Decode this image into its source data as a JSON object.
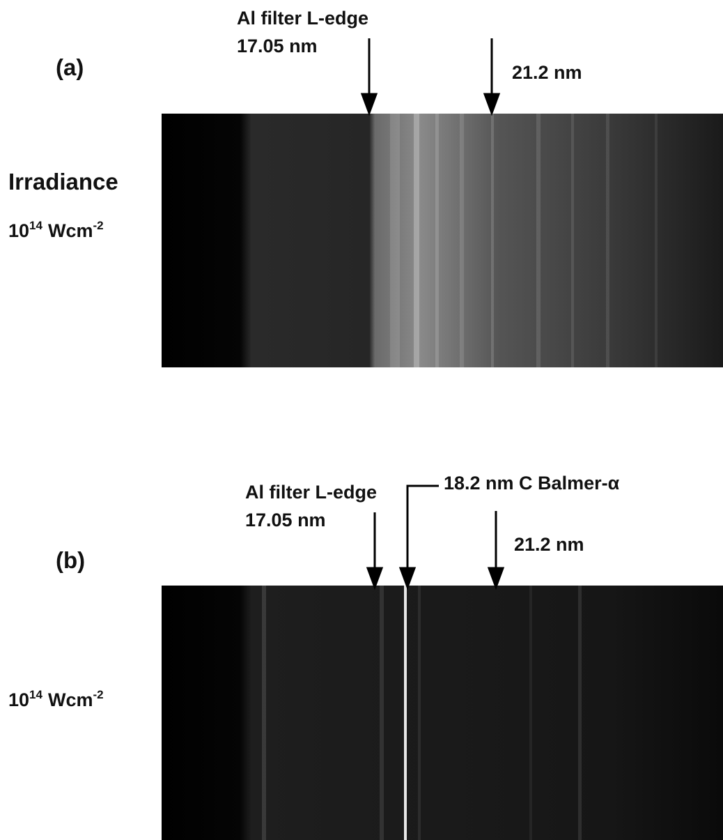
{
  "panels": [
    {
      "label": "(a)",
      "edge_label": "Al filter L-edge",
      "edge_wavelength": "17.05 nm",
      "line_label": "21.2 nm",
      "heading": "Irradiance",
      "irradiance": {
        "base": "10",
        "exponent": "14",
        "unit": "Wcm",
        "unit_exponent": "-2"
      }
    },
    {
      "label": "(b)",
      "edge_label": "Al filter L-edge",
      "edge_wavelength": "17.05 nm",
      "balmer_label": "18.2 nm C Balmer-α",
      "line_label": "21.2 nm",
      "irradiance": {
        "base": "10",
        "exponent": "14",
        "unit": "Wcm",
        "unit_exponent": "-2"
      }
    }
  ]
}
